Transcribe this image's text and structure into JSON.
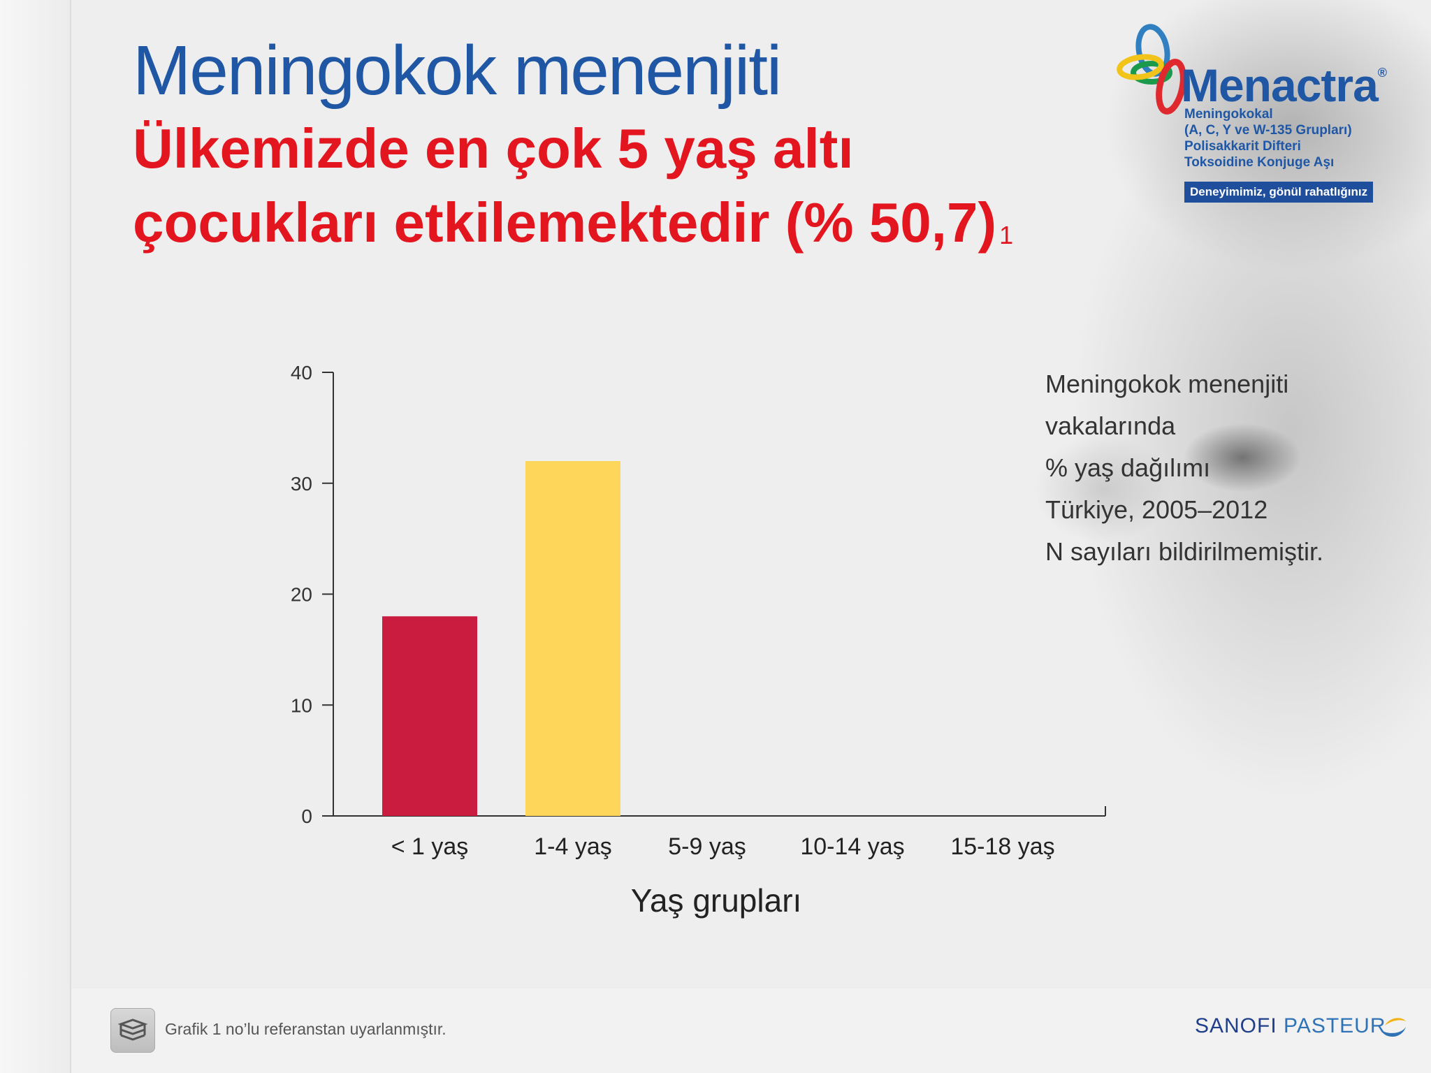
{
  "title": "Meningokok menenjiti",
  "subtitle_lines": [
    "Ülkemizde en çok 5 yaş altı",
    "çocukları etkilemektedir (% 50,7)"
  ],
  "subtitle_ref": "1",
  "logo": {
    "brand": "Menactra",
    "registered": "®",
    "subtitle_lines": [
      "Meningokokal",
      "(A, C, Y ve W-135 Grupları)",
      "Polisakkarit Difteri",
      "Toksoidine Konjuge Aşı"
    ],
    "tagline": "Deneyimimiz, gönül rahatlığınız",
    "ring_colors": [
      "#2f7fc1",
      "#1a9a4a",
      "#f2c318",
      "#e0282f"
    ]
  },
  "annotation_lines": [
    "Meningokok menenjiti",
    "vakalarında",
    "% yaş dağılımı",
    "Türkiye, 2005–2012",
    "N sayıları bildirilmemiştir."
  ],
  "chart_data": {
    "type": "bar",
    "categories": [
      "< 1 yaş",
      "1-4 yaş",
      "5-9 yaş",
      "10-14 yaş",
      "15-18 yaş"
    ],
    "values": [
      18,
      32,
      0,
      0,
      0
    ],
    "colors": [
      "#c91c3e",
      "#fed65a",
      "#c91c3e",
      "#c91c3e",
      "#c91c3e"
    ],
    "xlabel": "Yaş grupları",
    "ylabel": "",
    "ylim": [
      0,
      40
    ],
    "yticks": [
      0,
      10,
      20,
      30,
      40
    ],
    "grid": false,
    "legend": "none"
  },
  "footer": {
    "note": "Grafik 1 no’lu referanstan uyarlanmıştır.",
    "icon": "book-stack-icon",
    "company_part1": "SANOFI",
    "company_part2": "PASTEUR"
  }
}
